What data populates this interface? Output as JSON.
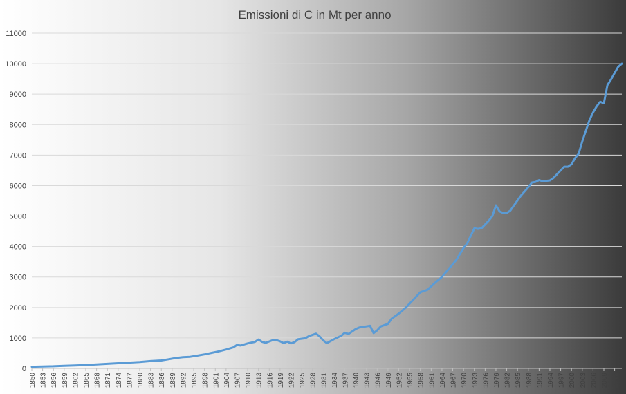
{
  "chart_data": {
    "type": "line",
    "title": "Emissioni di C in Mt per anno",
    "xlabel": "",
    "ylabel": "",
    "ylim": [
      0,
      11000
    ],
    "yticks": [
      0,
      1000,
      2000,
      3000,
      4000,
      5000,
      6000,
      7000,
      8000,
      9000,
      10000,
      11000
    ],
    "xlim": [
      1850,
      2014
    ],
    "xtick_step": 3,
    "grid": true,
    "legend": "none",
    "background": "horizontal gradient white to dark gray",
    "series": [
      {
        "color": "#5b9bd5",
        "x": [
          1850,
          1853,
          1856,
          1859,
          1862,
          1865,
          1868,
          1871,
          1874,
          1877,
          1880,
          1883,
          1886,
          1888,
          1890,
          1892,
          1894,
          1896,
          1898,
          1900,
          1902,
          1904,
          1906,
          1907,
          1908,
          1910,
          1912,
          1913,
          1914,
          1915,
          1917,
          1918,
          1919,
          1920,
          1921,
          1922,
          1923,
          1924,
          1926,
          1927,
          1929,
          1930,
          1931,
          1932,
          1934,
          1936,
          1937,
          1938,
          1940,
          1941,
          1943,
          1944,
          1945,
          1946,
          1947,
          1949,
          1950,
          1952,
          1954,
          1956,
          1958,
          1960,
          1962,
          1964,
          1966,
          1968,
          1970,
          1971,
          1973,
          1974,
          1975,
          1977,
          1978,
          1979,
          1980,
          1981,
          1982,
          1983,
          1984,
          1986,
          1988,
          1989,
          1990,
          1991,
          1992,
          1994,
          1995,
          1997,
          1998,
          1999,
          2000,
          2001,
          2002,
          2003,
          2004,
          2005,
          2006,
          2007,
          2008,
          2009,
          2010,
          2011,
          2012,
          2013,
          2014
        ],
        "values": [
          54,
          63,
          70,
          86,
          95,
          110,
          130,
          150,
          170,
          190,
          210,
          240,
          260,
          300,
          340,
          370,
          380,
          420,
          460,
          510,
          560,
          620,
          690,
          770,
          750,
          820,
          870,
          950,
          870,
          840,
          930,
          930,
          890,
          830,
          880,
          820,
          860,
          960,
          990,
          1060,
          1140,
          1050,
          920,
          830,
          960,
          1070,
          1170,
          1130,
          1290,
          1340,
          1380,
          1400,
          1160,
          1250,
          1380,
          1460,
          1630,
          1800,
          2000,
          2250,
          2500,
          2580,
          2800,
          3000,
          3280,
          3560,
          3950,
          4100,
          4600,
          4580,
          4600,
          4850,
          5000,
          5350,
          5150,
          5100,
          5100,
          5180,
          5350,
          5680,
          5950,
          6100,
          6120,
          6180,
          6140,
          6170,
          6250,
          6500,
          6620,
          6620,
          6700,
          6900,
          7050,
          7450,
          7800,
          8150,
          8400,
          8600,
          8750,
          8700,
          9300,
          9480,
          9700,
          9900,
          10000
        ]
      }
    ]
  }
}
